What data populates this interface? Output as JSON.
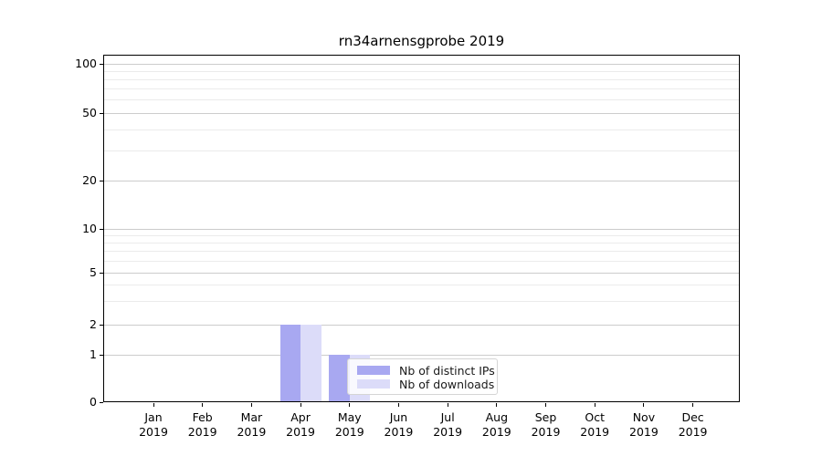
{
  "title": "rn34arnensgprobe 2019",
  "chart_data": {
    "type": "bar",
    "title": "rn34arnensgprobe 2019",
    "categories": [
      "Jan",
      "Feb",
      "Mar",
      "Apr",
      "May",
      "Jun",
      "Jul",
      "Aug",
      "Sep",
      "Oct",
      "Nov",
      "Dec"
    ],
    "x_tick_second_line": "2019",
    "series": [
      {
        "name": "Nb of distinct IPs",
        "color": "#a8a8f1",
        "values": [
          0,
          0,
          0,
          2,
          1,
          0,
          0,
          0,
          0,
          0,
          0,
          0
        ]
      },
      {
        "name": "Nb of downloads",
        "color": "#dcdcf9",
        "values": [
          0,
          0,
          0,
          2,
          1,
          0,
          0,
          0,
          0,
          0,
          0,
          0
        ]
      }
    ],
    "yticks": [
      0,
      1,
      2,
      5,
      10,
      20,
      50,
      100
    ],
    "yscale": "symlog",
    "ylim": [
      0,
      115
    ],
    "grid": true,
    "legend_position": "lower-center",
    "legend_items": [
      "Nb of distinct IPs",
      "Nb of downloads"
    ]
  },
  "colors": {
    "bar_distinct_ips": "#a8a8f1",
    "bar_downloads": "#dcdcf9",
    "grid_major": "#cccccc",
    "grid_minor": "#ebebeb",
    "axis": "#000000",
    "legend_border": "#d5d5d5"
  }
}
